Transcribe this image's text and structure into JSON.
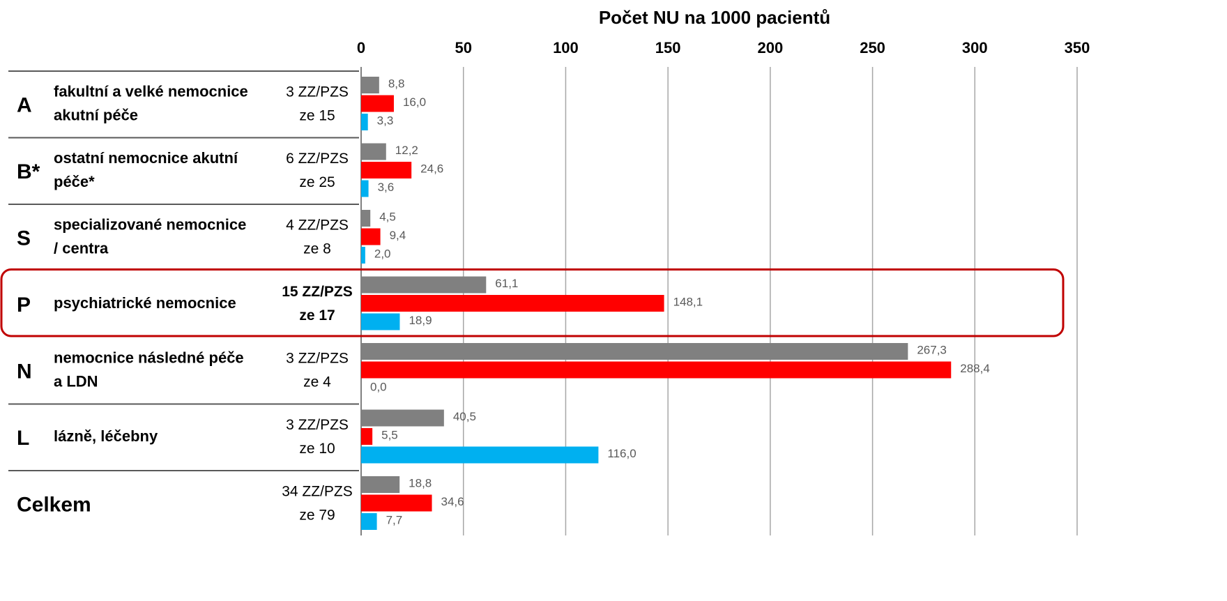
{
  "chart_data": {
    "type": "barh",
    "title": "Počet NU na 1000 pacientů",
    "rows": [
      {
        "code": "A",
        "label": [
          "fakultní a velké nemocnice",
          "akutní péče"
        ],
        "count": [
          "3 ZZ/PZS",
          "ze 15"
        ]
      },
      {
        "code": "B*",
        "label": [
          "ostatní nemocnice akutní",
          "péče*"
        ],
        "count": [
          "6 ZZ/PZS",
          "ze 25"
        ]
      },
      {
        "code": "S",
        "label": [
          "specializované nemocnice",
          "/ centra"
        ],
        "count": [
          "4 ZZ/PZS",
          "ze 8"
        ]
      },
      {
        "code": "P",
        "label": [
          "psychiatrické nemocnice"
        ],
        "count": [
          "15 ZZ/PZS",
          "ze 17"
        ],
        "highlighted": true
      },
      {
        "code": "N",
        "label": [
          "nemocnice následné péče",
          "a LDN"
        ],
        "count": [
          "3 ZZ/PZS",
          "ze 4"
        ]
      },
      {
        "code": "L",
        "label": [
          "lázně, léčebny"
        ],
        "count": [
          "3 ZZ/PZS",
          "ze 10"
        ]
      },
      {
        "code": "Celkem",
        "label": [],
        "count": [
          "34 ZZ/PZS",
          "ze 79"
        ]
      }
    ],
    "series": [
      {
        "color": "#808080",
        "values": [
          8.8,
          12.2,
          4.5,
          61.1,
          267.3,
          40.5,
          18.8
        ],
        "value_labels": [
          "8,8",
          "12,2",
          "4,5",
          "61,1",
          "267,3",
          "40,5",
          "18,8"
        ]
      },
      {
        "color": "#ff0000",
        "values": [
          16.0,
          24.6,
          9.4,
          148.1,
          288.4,
          5.5,
          34.6
        ],
        "value_labels": [
          "16,0",
          "24,6",
          "9,4",
          "148,1",
          "288,4",
          "5,5",
          "34,6"
        ]
      },
      {
        "color": "#00b0f0",
        "values": [
          3.3,
          3.6,
          2.0,
          18.9,
          0.0,
          116.0,
          7.7
        ],
        "value_labels": [
          "3,3",
          "3,6",
          "2,0",
          "18,9",
          "0,0",
          "116,0",
          "7,7"
        ]
      }
    ],
    "xlim": [
      0,
      350
    ],
    "xticks": [
      0,
      50,
      100,
      150,
      200,
      250,
      300,
      350
    ],
    "grid": true,
    "highlight_color": "#c00000"
  }
}
